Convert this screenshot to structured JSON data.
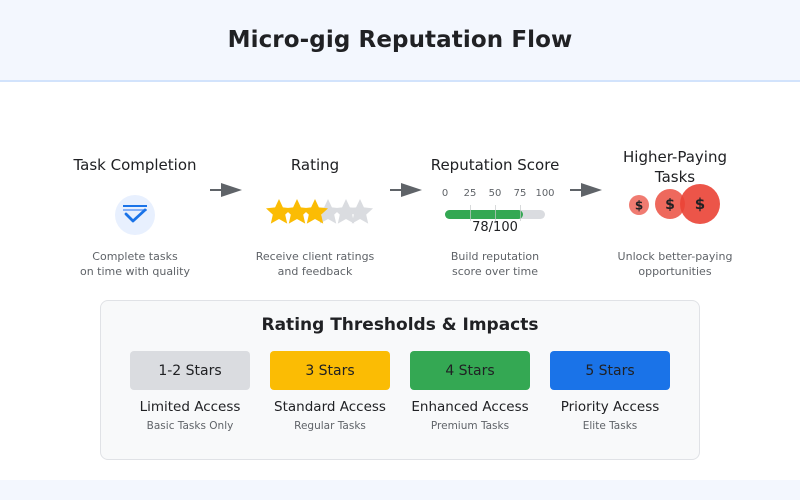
{
  "header": {
    "title": "Micro-gig Reputation Flow"
  },
  "flow": {
    "steps": [
      {
        "title": "Task Completion",
        "icon": "check-task-icon",
        "desc_line1": "Complete tasks",
        "desc_line2": "on time with quality"
      },
      {
        "title": "Rating",
        "icon": "star-rating-icon",
        "desc_line1": "Receive client ratings",
        "desc_line2": "and feedback",
        "stars_filled": 3,
        "stars_total": 5
      },
      {
        "title": "Reputation Score",
        "icon": "score-bar",
        "desc_line1": "Build reputation",
        "desc_line2": "score over time",
        "ticks": [
          "0",
          "25",
          "50",
          "75",
          "100"
        ],
        "score": 78,
        "score_label": "78/100"
      },
      {
        "title_line1": "Higher-Paying",
        "title_line2": "Tasks",
        "icon": "dollar-coins-icon",
        "coin_glyph": "$",
        "desc_line1": "Unlock better-paying",
        "desc_line2": "opportunities"
      }
    ],
    "arrow_icon": "arrow-right-icon"
  },
  "thresholds": {
    "title": "Rating Thresholds & Impacts",
    "tiers": [
      {
        "badge": "1-2 Stars",
        "access": "Limited Access",
        "tasks": "Basic Tasks Only",
        "color": "#dadce0"
      },
      {
        "badge": "3 Stars",
        "access": "Standard Access",
        "tasks": "Regular Tasks",
        "color": "#fbbc04"
      },
      {
        "badge": "4 Stars",
        "access": "Enhanced Access",
        "tasks": "Premium Tasks",
        "color": "#34a853"
      },
      {
        "badge": "5 Stars",
        "access": "Priority Access",
        "tasks": "Elite Tasks",
        "color": "#1a73e8"
      }
    ]
  },
  "colors": {
    "accent_blue": "#1a73e8",
    "star_gold": "#fbbc04",
    "star_empty": "#dadce0",
    "score_green": "#34a853",
    "coin_red": "#ea4335",
    "arrow_gray": "#5f6368"
  }
}
